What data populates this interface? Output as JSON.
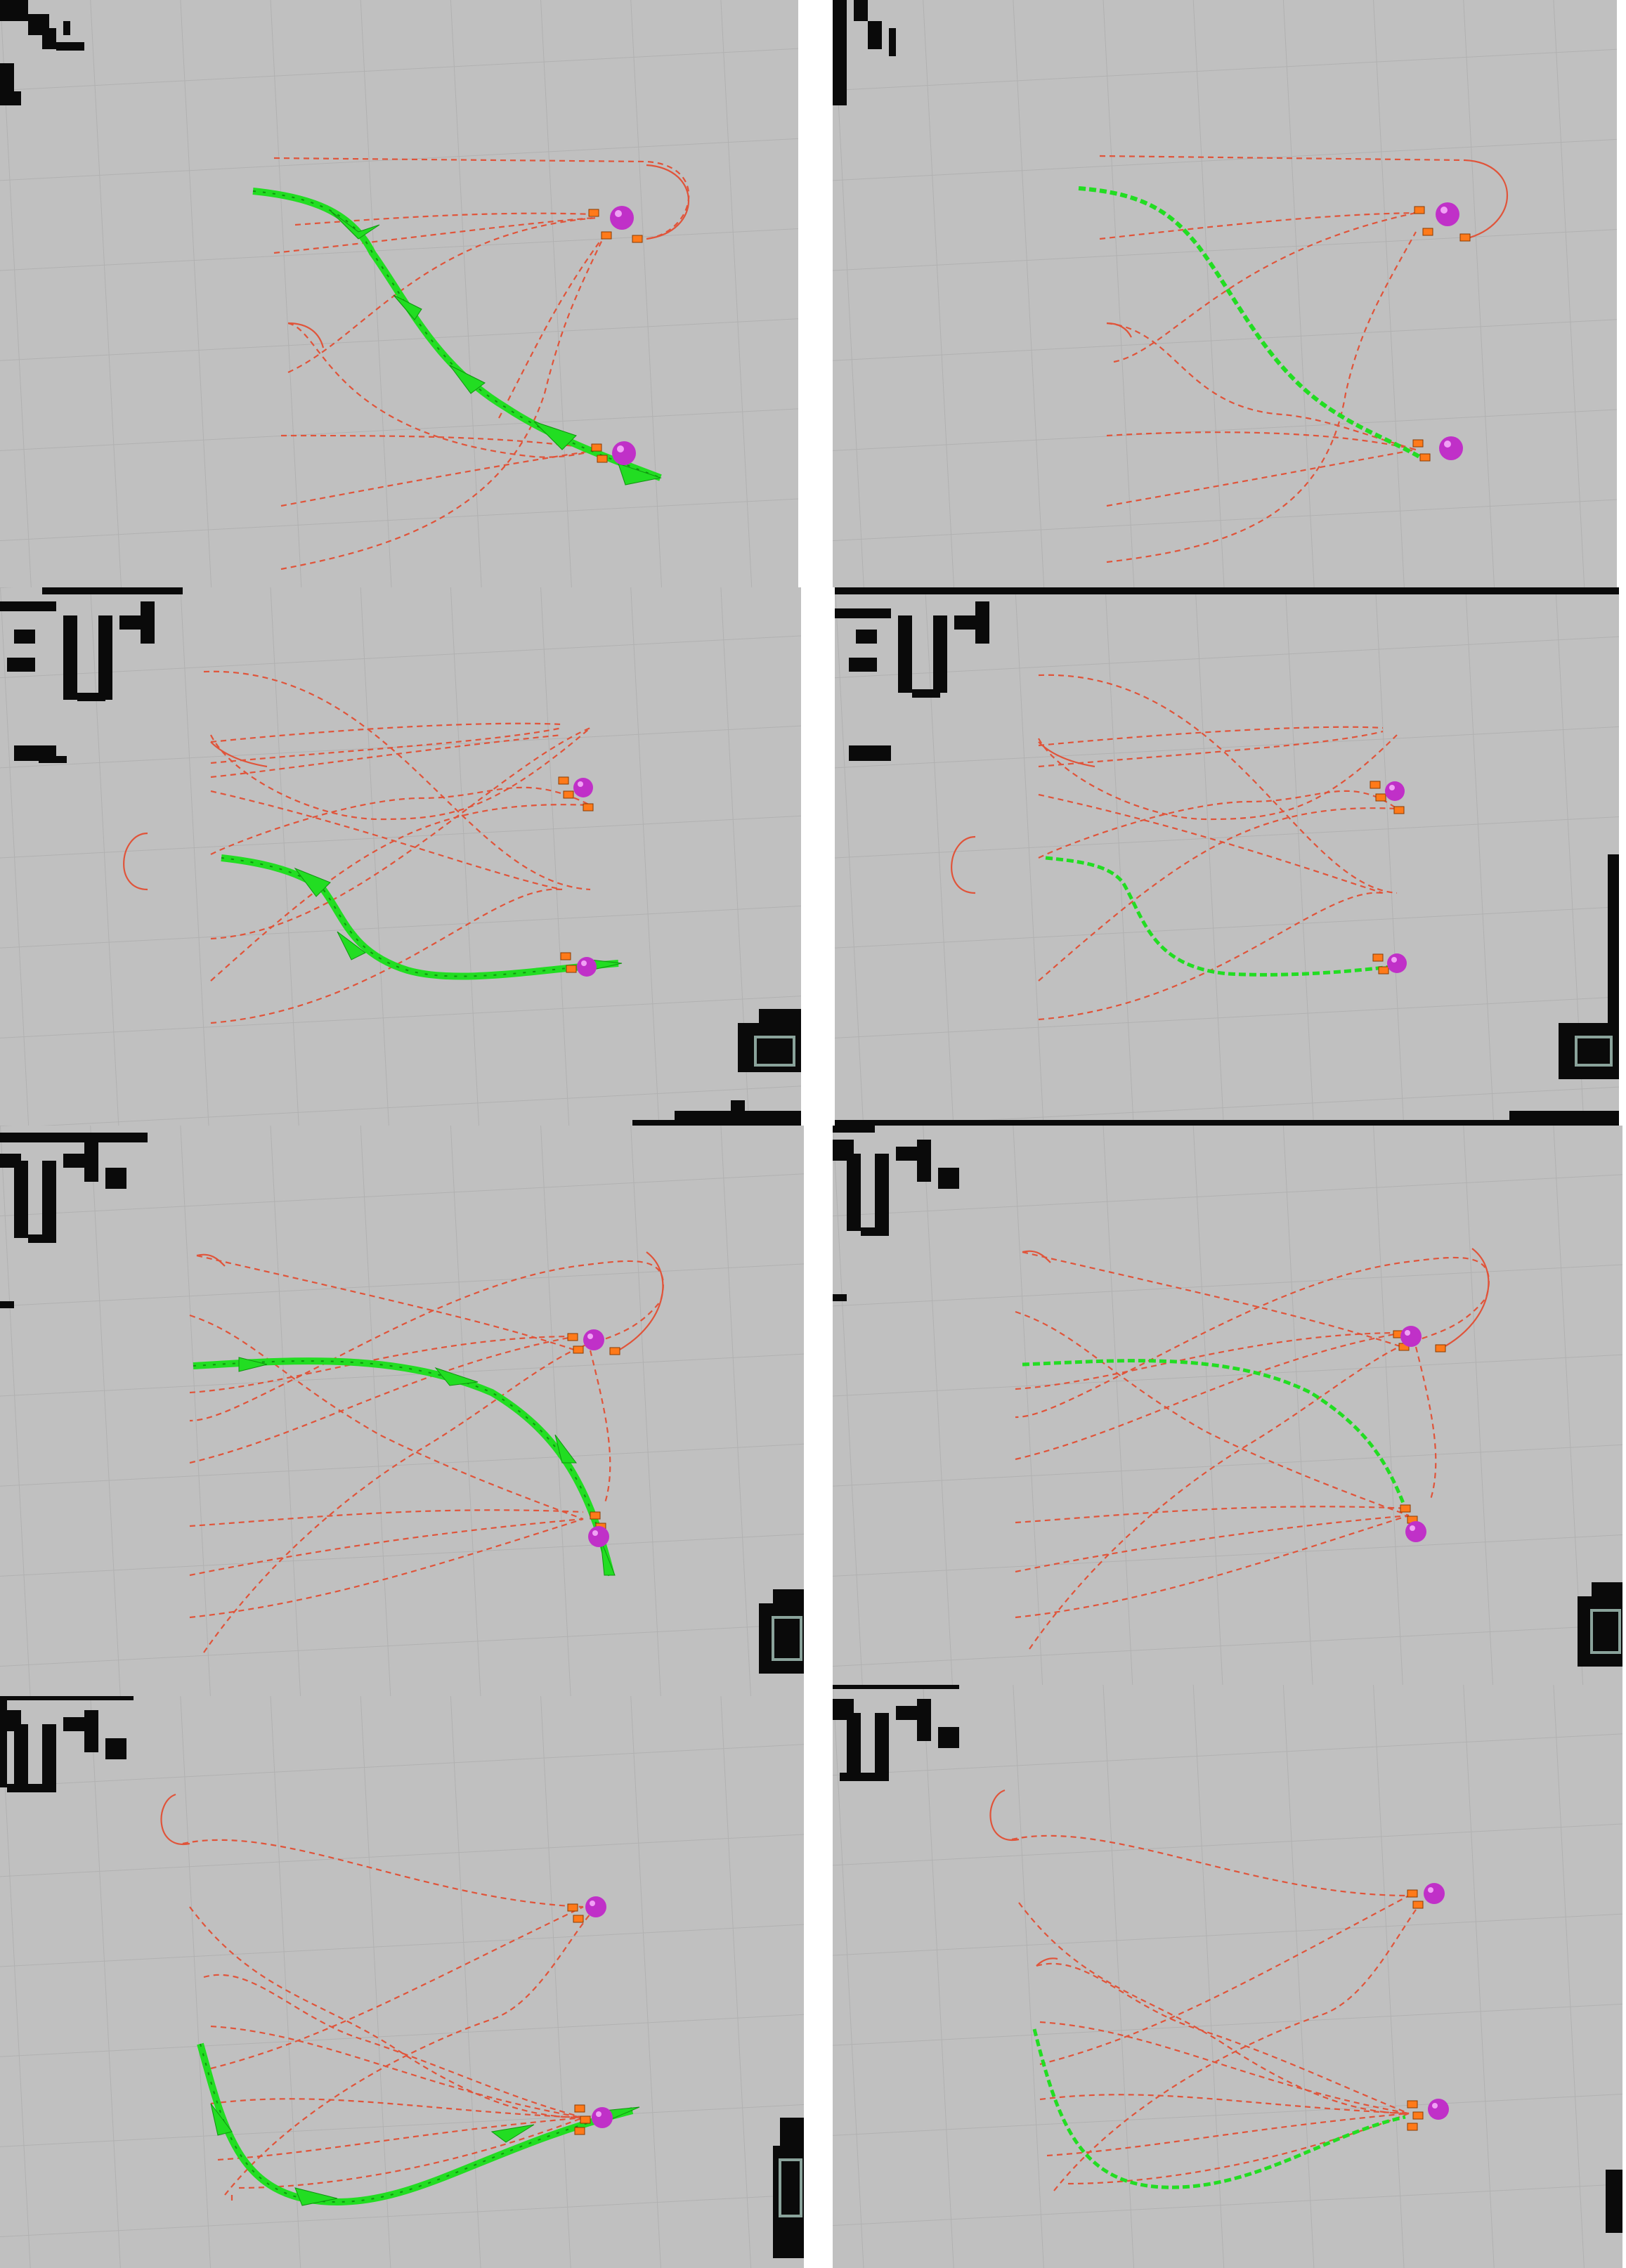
{
  "layout_title": "",
  "colors": {
    "grid_background": "#c0c0c0",
    "grid_line": "#b3b3b3",
    "obstacle": "#0a0a0a",
    "inflation": "#8aa39b",
    "candidate_path": "#e0543a",
    "selected_path": "#22dd22",
    "pose_marker": "#ff7a1a",
    "goal_sphere": "#c030c8",
    "page_background": "#ffffff"
  },
  "icons": {
    "goal": "goal-sphere-icon",
    "pose": "pose-marker-icon"
  },
  "panels": [
    {
      "id": "row1-left",
      "style": "pose-arrows",
      "scene": "A"
    },
    {
      "id": "row1-right",
      "style": "dashed-path",
      "scene": "A"
    },
    {
      "id": "row2-left",
      "style": "pose-arrows",
      "scene": "B"
    },
    {
      "id": "row2-right",
      "style": "dashed-path",
      "scene": "B"
    },
    {
      "id": "row3-left",
      "style": "pose-arrows",
      "scene": "C"
    },
    {
      "id": "row3-right",
      "style": "dashed-path",
      "scene": "C"
    },
    {
      "id": "row4-left",
      "style": "pose-arrows",
      "scene": "D"
    },
    {
      "id": "row4-right",
      "style": "dashed-path",
      "scene": "D"
    }
  ]
}
